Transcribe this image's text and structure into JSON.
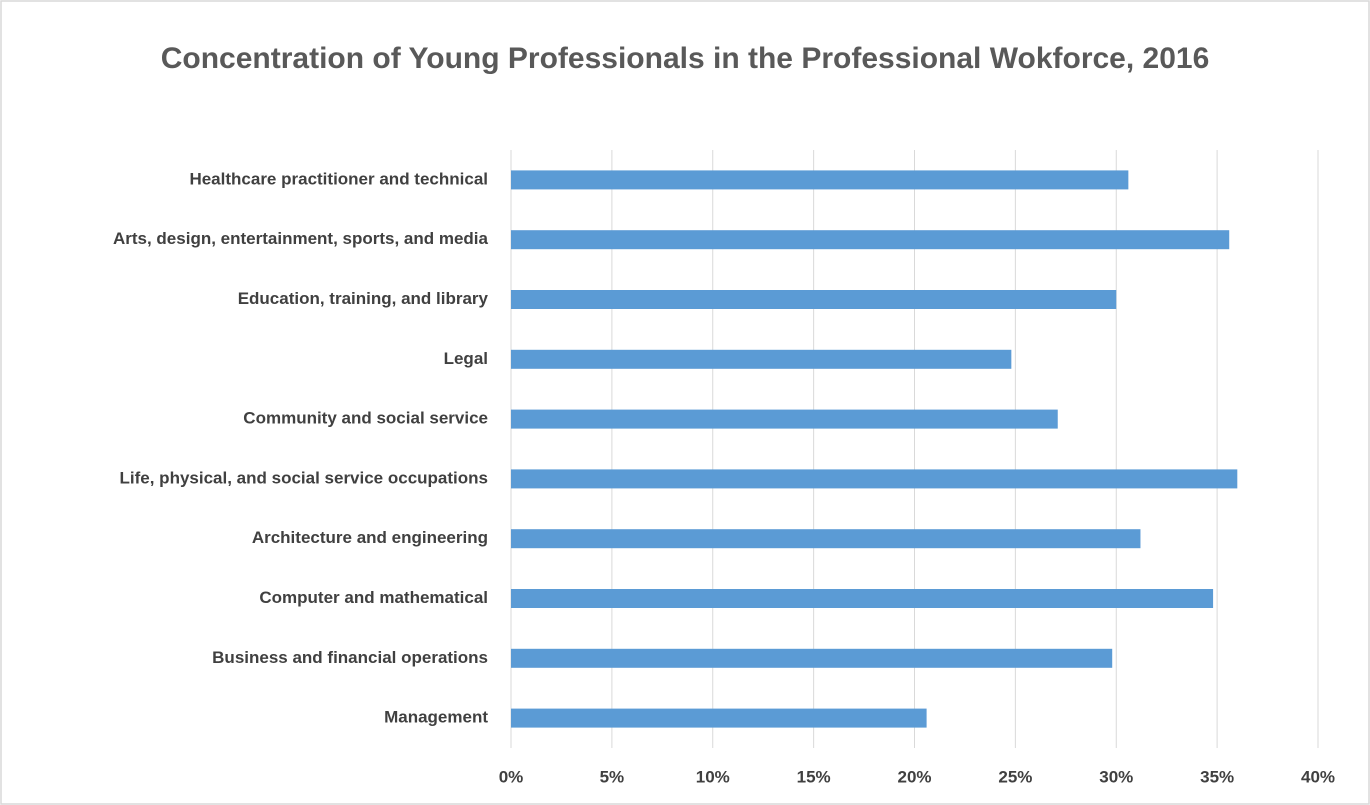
{
  "chart_data": {
    "type": "bar",
    "orientation": "horizontal",
    "title": "Concentration of Young Professionals in the Professional Wokforce, 2016",
    "categories": [
      "Healthcare practitioner and technical",
      "Arts, design, entertainment, sports, and media",
      "Education, training, and library",
      "Legal",
      "Community and social service",
      "Life, physical, and social service occupations",
      "Architecture and engineering",
      "Computer and mathematical",
      "Business and financial operations",
      "Management"
    ],
    "values": [
      30.6,
      35.6,
      30.0,
      24.8,
      27.1,
      36.0,
      31.2,
      34.8,
      29.8,
      20.6
    ],
    "color": "#5b9bd5",
    "xlim": [
      0,
      40
    ],
    "xticks": [
      {
        "value": 0,
        "label": "0%"
      },
      {
        "value": 5,
        "label": "5%"
      },
      {
        "value": 10,
        "label": "10%"
      },
      {
        "value": 15,
        "label": "15%"
      },
      {
        "value": 20,
        "label": "20%"
      },
      {
        "value": 25,
        "label": "25%"
      },
      {
        "value": 30,
        "label": "30%"
      },
      {
        "value": 35,
        "label": "35%"
      },
      {
        "value": 40,
        "label": "40%"
      }
    ],
    "grid": true
  }
}
